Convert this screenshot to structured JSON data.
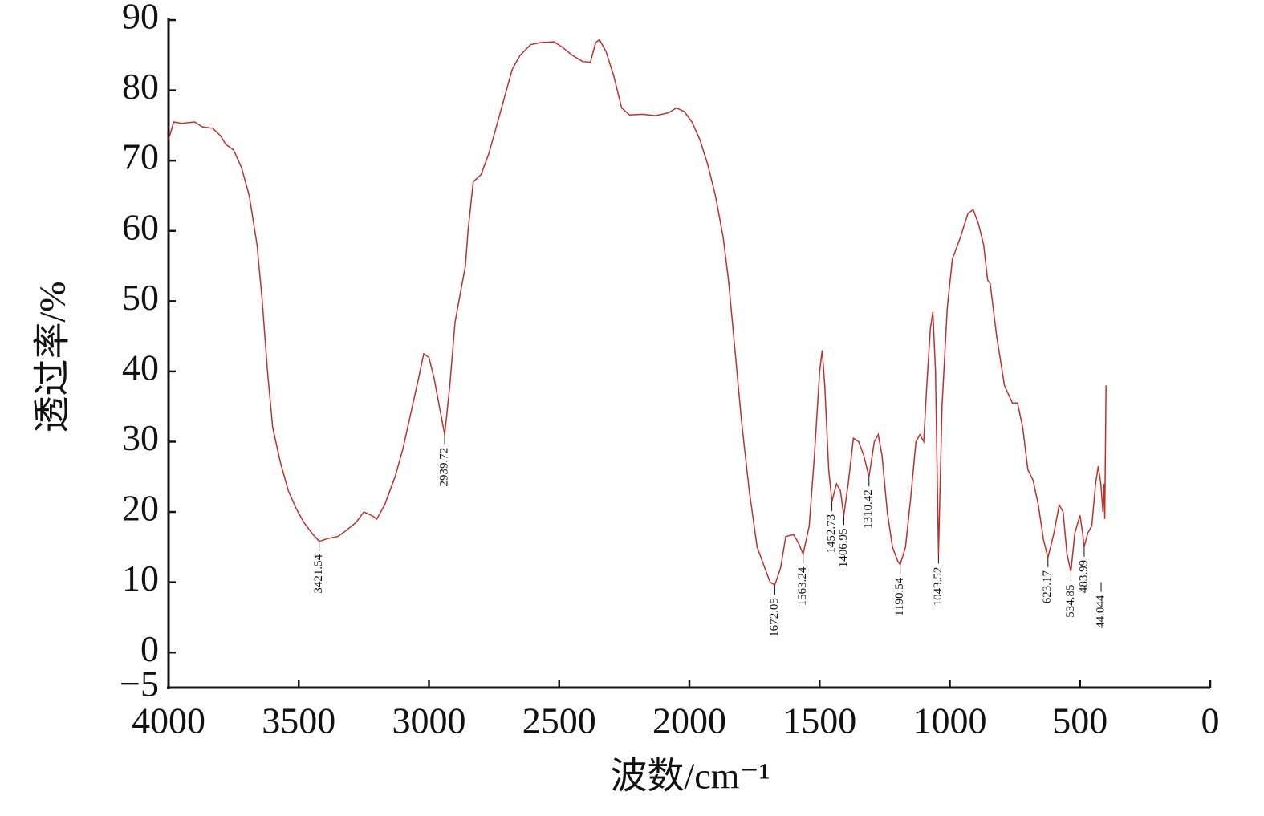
{
  "chart_data": {
    "type": "line",
    "xlabel": "波数/cm⁻¹",
    "ylabel": "透过率/%",
    "color": "#c0302a",
    "xlim": [
      4000,
      0
    ],
    "xticks": [
      4000,
      3500,
      3000,
      2500,
      2000,
      1500,
      1000,
      500,
      0
    ],
    "ylim": [
      -5,
      90
    ],
    "yticks": [
      {
        "value": -5,
        "label": "−5"
      },
      0,
      10,
      20,
      30,
      40,
      50,
      60,
      70,
      80,
      90
    ],
    "x": [
      4000,
      3980,
      3950,
      3900,
      3870,
      3830,
      3800,
      3780,
      3750,
      3720,
      3690,
      3660,
      3640,
      3620,
      3600,
      3570,
      3540,
      3510,
      3480,
      3450,
      3421.54,
      3390,
      3350,
      3320,
      3280,
      3250,
      3220,
      3200,
      3170,
      3130,
      3100,
      3070,
      3040,
      3020,
      3000,
      2980,
      2960,
      2939.72,
      2920,
      2900,
      2880,
      2860,
      2850,
      2830,
      2800,
      2770,
      2740,
      2710,
      2680,
      2650,
      2610,
      2570,
      2520,
      2490,
      2450,
      2410,
      2380,
      2360,
      2345,
      2320,
      2290,
      2260,
      2230,
      2180,
      2130,
      2080,
      2050,
      2020,
      1990,
      1960,
      1930,
      1900,
      1870,
      1850,
      1830,
      1800,
      1770,
      1740,
      1710,
      1690,
      1672.05,
      1650,
      1630,
      1600,
      1580,
      1563.24,
      1540,
      1520,
      1500,
      1490,
      1480,
      1465,
      1452.73,
      1435,
      1420,
      1406.95,
      1390,
      1370,
      1350,
      1330,
      1310.42,
      1290,
      1275,
      1260,
      1240,
      1220,
      1200,
      1190.54,
      1170,
      1150,
      1130,
      1115,
      1100,
      1090,
      1075,
      1065,
      1055,
      1043.52,
      1030,
      1010,
      990,
      960,
      930,
      910,
      890,
      870,
      855,
      845,
      820,
      790,
      760,
      740,
      720,
      700,
      680,
      660,
      640,
      623.17,
      600,
      580,
      565,
      550,
      534.85,
      520,
      500,
      490,
      483.99,
      470,
      455,
      440,
      430,
      420,
      412,
      408,
      405,
      400
    ],
    "values": [
      73,
      75.5,
      75.3,
      75.5,
      74.8,
      74.6,
      73.5,
      72.3,
      71.5,
      69,
      65,
      58,
      50,
      40,
      32,
      27,
      23,
      20.5,
      18.5,
      17,
      15.8,
      16.2,
      16.5,
      17.3,
      18.5,
      20,
      19.5,
      19,
      21,
      25,
      29,
      34,
      39,
      42.5,
      42,
      39,
      35,
      31,
      38,
      47,
      51,
      55,
      60,
      67,
      68,
      71,
      75,
      79,
      83,
      85,
      86.5,
      86.8,
      86.9,
      86.2,
      85,
      84.1,
      84,
      86.8,
      87.2,
      85.5,
      82,
      77.5,
      76.5,
      76.6,
      76.4,
      76.8,
      77.5,
      77,
      75.5,
      73,
      69.5,
      65,
      59,
      53,
      45,
      33,
      23,
      15,
      12,
      10,
      9.6,
      12,
      16.5,
      16.8,
      15.5,
      14,
      18,
      28,
      40,
      43,
      38,
      26,
      21.5,
      24,
      23,
      19.5,
      24,
      30.5,
      30,
      28,
      25,
      30,
      31,
      28,
      20,
      15,
      13,
      12.5,
      15,
      22,
      30,
      31,
      30,
      37,
      46,
      48.5,
      40,
      14,
      35,
      49,
      56,
      59,
      62.5,
      63,
      61,
      58,
      53,
      52.5,
      45,
      38,
      35.5,
      35.5,
      32,
      26,
      24.5,
      21,
      16,
      13.5,
      17,
      21,
      20,
      14,
      11.5,
      17,
      19.5,
      17,
      15,
      17,
      18,
      24,
      26.5,
      24,
      20,
      24,
      19,
      38
    ],
    "annotations": [
      {
        "text": "3421.54",
        "x": 3421.54,
        "y": 15.8
      },
      {
        "text": "2939.72",
        "x": 2939.72,
        "y": 31
      },
      {
        "text": "1672.05",
        "x": 1672.05,
        "y": 9.6
      },
      {
        "text": "1563.24",
        "x": 1563.24,
        "y": 14
      },
      {
        "text": "1452.73",
        "x": 1452.73,
        "y": 21.5
      },
      {
        "text": "1406.95",
        "x": 1406.95,
        "y": 19.5
      },
      {
        "text": "1310.42",
        "x": 1310.42,
        "y": 25
      },
      {
        "text": "1190.54",
        "x": 1190.54,
        "y": 12.5
      },
      {
        "text": "1043.52",
        "x": 1043.52,
        "y": 14
      },
      {
        "text": "623.17",
        "x": 623.17,
        "y": 13.5
      },
      {
        "text": "534.85",
        "x": 534.85,
        "y": 11.5
      },
      {
        "text": "483.99",
        "x": 483.99,
        "y": 15
      },
      {
        "text": "44.044",
        "x": 419,
        "y": 10
      }
    ]
  }
}
